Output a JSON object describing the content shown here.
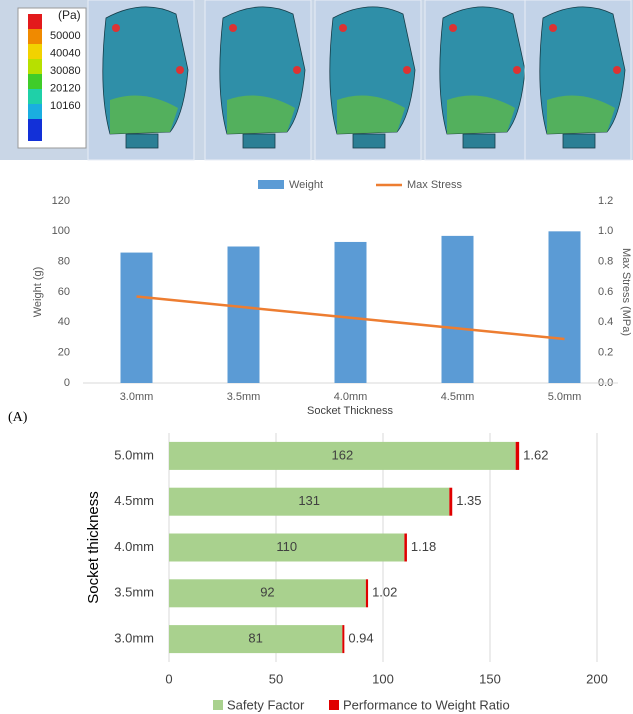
{
  "panel_label": "(A)",
  "colorbar": {
    "title": "(Pa)",
    "ticks": [
      50000,
      40040,
      30080,
      20120,
      10160
    ]
  },
  "chart_data": [
    {
      "type": "bar",
      "categories": [
        "3.0mm",
        "3.5mm",
        "4.0mm",
        "4.5mm",
        "5.0mm"
      ],
      "x_label": "Socket Thickness",
      "y_label": "Weight (g)",
      "y2_label": "Max Stress (MPa)",
      "series": [
        {
          "name": "Weight",
          "type": "bar",
          "color": "#5b9bd5",
          "values": [
            86,
            90,
            93,
            97,
            100
          ]
        },
        {
          "name": "Max Stress",
          "type": "line",
          "axis": "y2",
          "color": "#ed7d31",
          "values": [
            0.57,
            0.5,
            0.43,
            0.36,
            0.29
          ]
        }
      ],
      "ylim": [
        0,
        120
      ],
      "yticks": [
        0,
        20,
        40,
        60,
        80,
        100,
        120
      ],
      "y2lim": [
        0,
        1.2
      ],
      "y2ticks": [
        {
          "value": 0,
          "label": "0.0"
        },
        0.2,
        0.4,
        0.6,
        0.8,
        {
          "value": 1,
          "label": "1.0"
        },
        1.2
      ],
      "legend": "top",
      "grid": false
    },
    {
      "type": "hbar",
      "stacked": true,
      "categories": [
        "5.0mm",
        "4.5mm",
        "4.0mm",
        "3.5mm",
        "3.0mm"
      ],
      "y_label": "Socket thickness",
      "series": [
        {
          "name": "Safety Factor",
          "color": "#a9d18e",
          "values": [
            162,
            131,
            110,
            92,
            81
          ]
        },
        {
          "name": "Performance to Weight Ratio",
          "color": "#e00000",
          "values": [
            1.62,
            1.35,
            1.18,
            1.02,
            0.94
          ]
        }
      ],
      "xlim": [
        0,
        200
      ],
      "xticks": [
        0,
        50,
        100,
        150,
        200
      ],
      "legend": "bottom",
      "grid": true
    }
  ]
}
